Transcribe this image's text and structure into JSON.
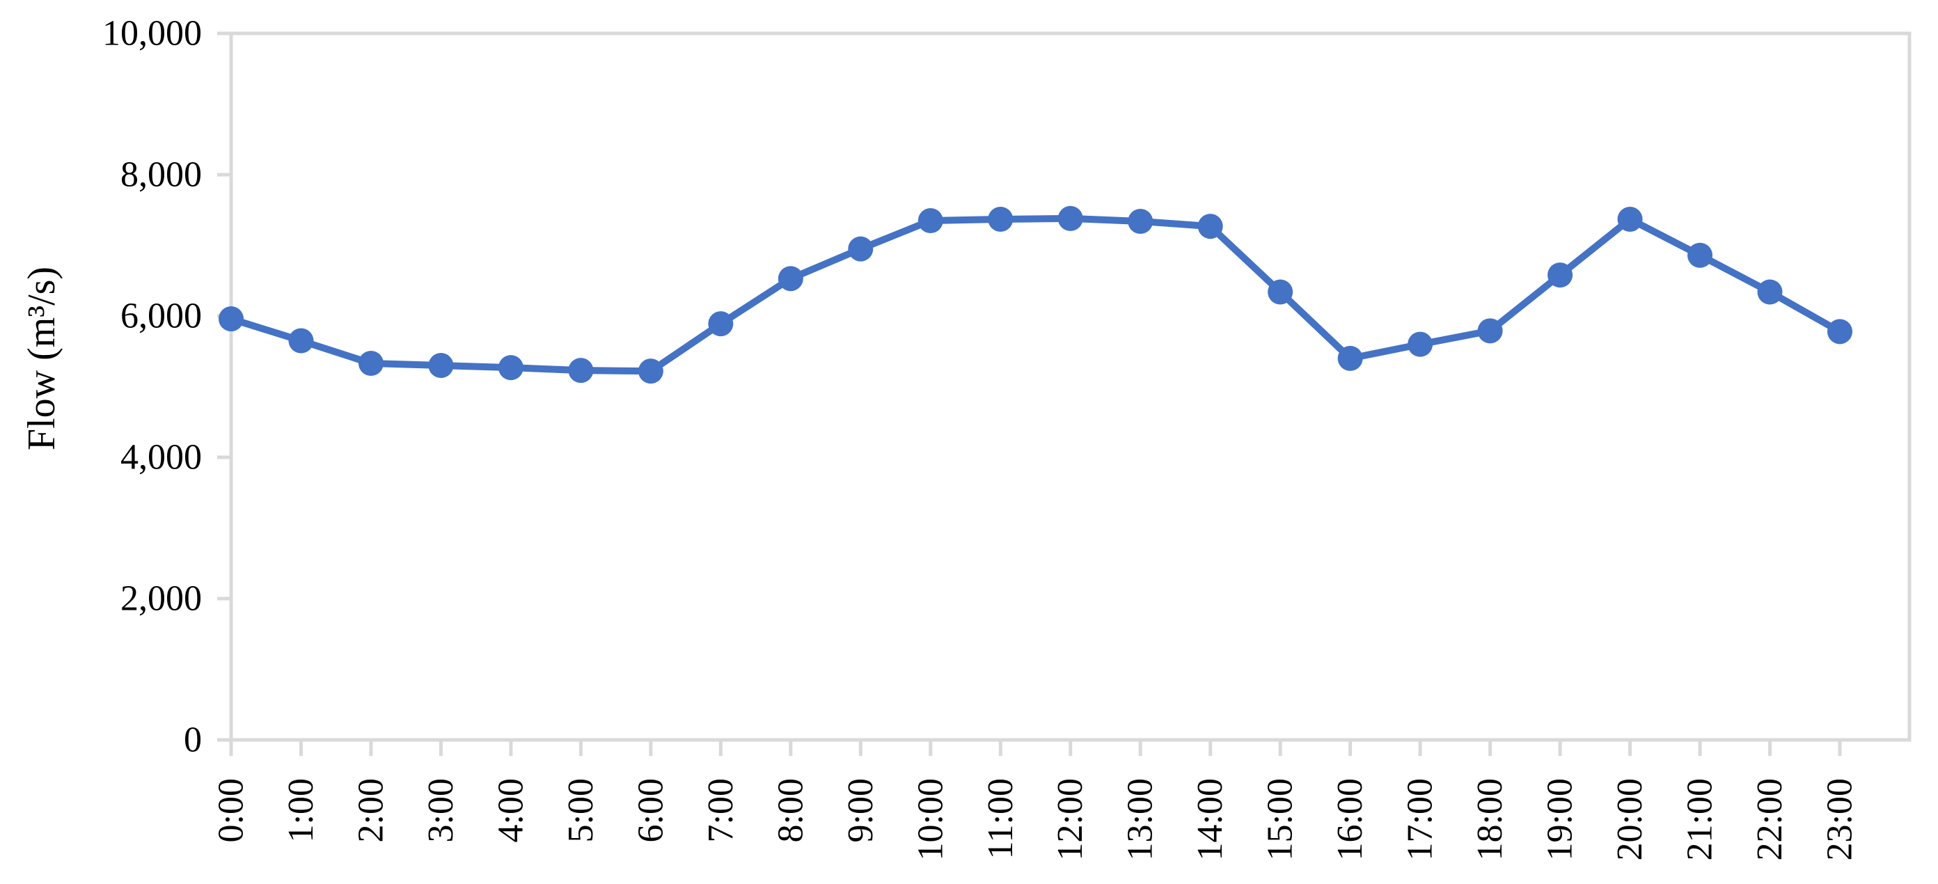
{
  "chart_data": {
    "type": "line",
    "title": "",
    "xlabel": "",
    "ylabel": "Flow (m³/s)",
    "categories": [
      "0:00",
      "1:00",
      "2:00",
      "3:00",
      "4:00",
      "5:00",
      "6:00",
      "7:00",
      "8:00",
      "9:00",
      "10:00",
      "11:00",
      "12:00",
      "13:00",
      "14:00",
      "15:00",
      "16:00",
      "17:00",
      "18:00",
      "19:00",
      "20:00",
      "21:00",
      "22:00",
      "23:00"
    ],
    "series": [
      {
        "name": "Flow",
        "values": [
          5960,
          5650,
          5330,
          5300,
          5270,
          5230,
          5220,
          5890,
          6530,
          6950,
          7350,
          7370,
          7380,
          7340,
          7270,
          6340,
          5400,
          5600,
          5790,
          6580,
          7370,
          6860,
          6340,
          5780
        ]
      }
    ],
    "ylim": [
      0,
      10000
    ],
    "ytick_interval": 2000,
    "ytick_labels": [
      "0",
      "2,000",
      "4,000",
      "6,000",
      "8,000",
      "10,000"
    ],
    "grid": false,
    "legend": "none",
    "marker": "circle",
    "colors": {
      "series": "#4472C4",
      "axis": "#D9D9D9",
      "text": "#000000",
      "background": "#FFFFFF"
    }
  }
}
